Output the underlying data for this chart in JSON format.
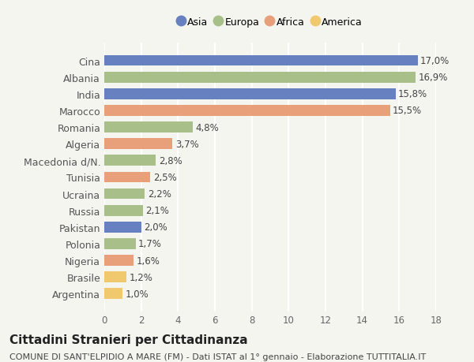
{
  "categories": [
    "Argentina",
    "Brasile",
    "Nigeria",
    "Polonia",
    "Pakistan",
    "Russia",
    "Ucraina",
    "Tunisia",
    "Macedonia d/N.",
    "Algeria",
    "Romania",
    "Marocco",
    "India",
    "Albania",
    "Cina"
  ],
  "values": [
    1.0,
    1.2,
    1.6,
    1.7,
    2.0,
    2.1,
    2.2,
    2.5,
    2.8,
    3.7,
    4.8,
    15.5,
    15.8,
    16.9,
    17.0
  ],
  "colors": [
    "#f0c96e",
    "#f0c96e",
    "#e8a07a",
    "#a8bf8a",
    "#6680c0",
    "#a8bf8a",
    "#a8bf8a",
    "#e8a07a",
    "#a8bf8a",
    "#e8a07a",
    "#a8bf8a",
    "#e8a07a",
    "#6680c0",
    "#a8bf8a",
    "#6680c0"
  ],
  "labels": [
    "1,0%",
    "1,2%",
    "1,6%",
    "1,7%",
    "2,0%",
    "2,1%",
    "2,2%",
    "2,5%",
    "2,8%",
    "3,7%",
    "4,8%",
    "15,5%",
    "15,8%",
    "16,9%",
    "17,0%"
  ],
  "legend": [
    {
      "label": "Asia",
      "color": "#6680c0"
    },
    {
      "label": "Europa",
      "color": "#a8bf8a"
    },
    {
      "label": "Africa",
      "color": "#e8a07a"
    },
    {
      "label": "America",
      "color": "#f0c96e"
    }
  ],
  "xlim": [
    0,
    18
  ],
  "xticks": [
    0,
    2,
    4,
    6,
    8,
    10,
    12,
    14,
    16,
    18
  ],
  "title": "Cittadini Stranieri per Cittadinanza",
  "subtitle": "COMUNE DI SANT'ELPIDIO A MARE (FM) - Dati ISTAT al 1° gennaio - Elaborazione TUTTITALIA.IT",
  "background_color": "#f5f5f0",
  "grid_color": "#ffffff",
  "bar_height": 0.65,
  "label_fontsize": 8.5,
  "title_fontsize": 11,
  "subtitle_fontsize": 8
}
